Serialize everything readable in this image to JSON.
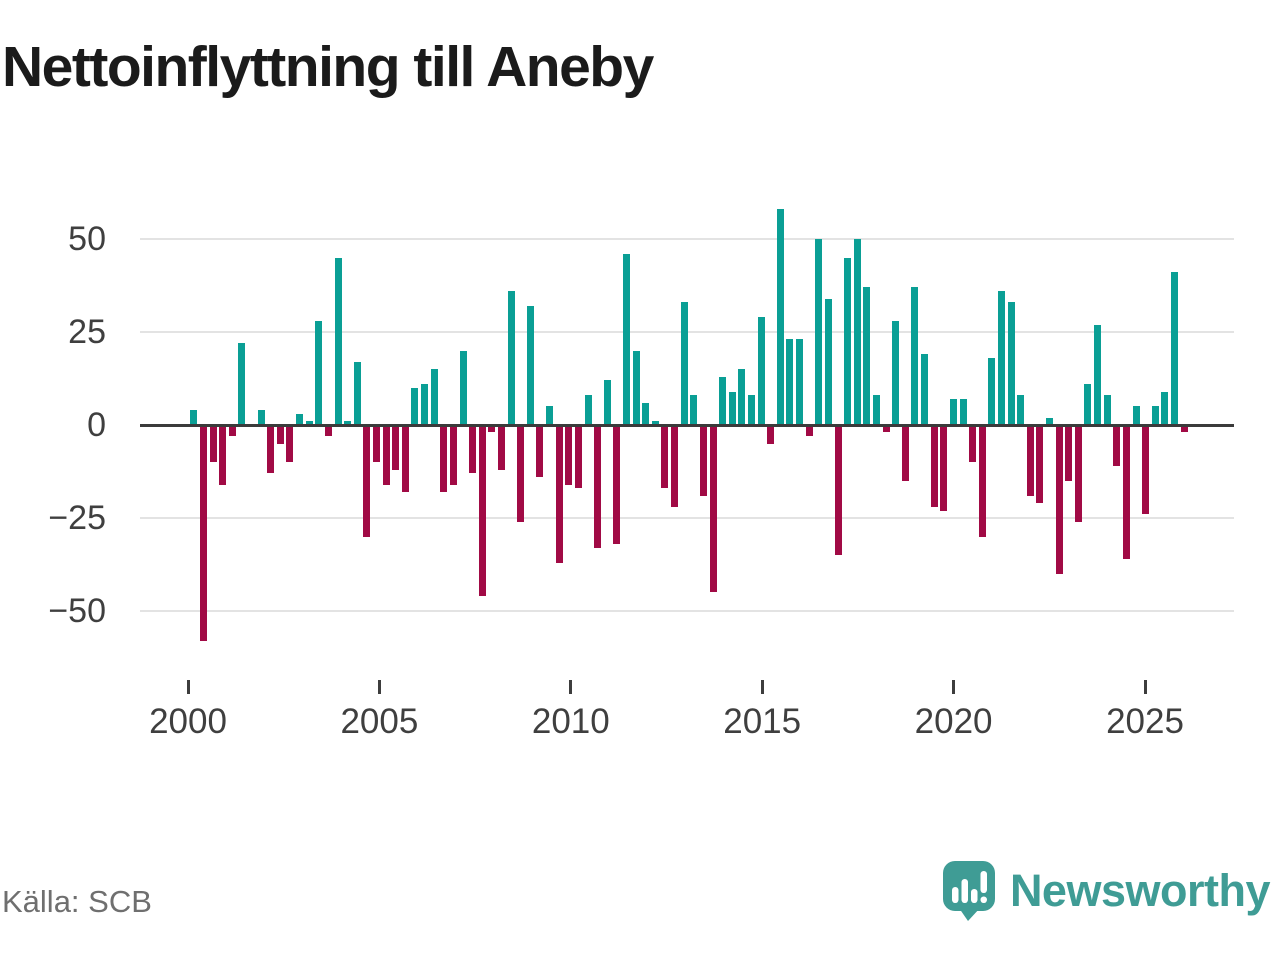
{
  "title": "Nettoinflyttning till Aneby",
  "source": "Källa: SCB",
  "brand": {
    "name": "Newsworthy",
    "icon": "speech-bubble-bar-chart-icon",
    "color": "#3f9c95"
  },
  "colors": {
    "positive_bar": "#0a9f95",
    "negative_bar": "#a10a45",
    "zero_axis": "#3b3b3b",
    "gridline": "#e3e3e3",
    "tick_label": "#3f3f3f",
    "title_text": "#1b1b1b",
    "source_text": "#6f6f6f",
    "background": "#ffffff"
  },
  "chart_data": {
    "type": "bar",
    "title": "Nettoinflyttning till Aneby",
    "xlabel": "",
    "ylabel": "",
    "frequency": "quarterly",
    "grid": true,
    "ylim": [
      -62,
      62
    ],
    "y_ticks": [
      {
        "label": "50",
        "value": 50
      },
      {
        "label": "25",
        "value": 25
      },
      {
        "label": "0",
        "value": 0
      },
      {
        "label": "−25",
        "value": -25
      },
      {
        "label": "−50",
        "value": -50
      }
    ],
    "x_tick_labels": [
      {
        "label": "2000",
        "year": 2000
      },
      {
        "label": "2005",
        "year": 2005
      },
      {
        "label": "2010",
        "year": 2010
      },
      {
        "label": "2015",
        "year": 2015
      },
      {
        "label": "2020",
        "year": 2020
      },
      {
        "label": "2025",
        "year": 2025
      }
    ],
    "categories": [
      "2000Q1",
      "2000Q2",
      "2000Q3",
      "2000Q4",
      "2001Q1",
      "2001Q2",
      "2001Q3",
      "2001Q4",
      "2002Q1",
      "2002Q2",
      "2002Q3",
      "2002Q4",
      "2003Q1",
      "2003Q2",
      "2003Q3",
      "2003Q4",
      "2004Q1",
      "2004Q2",
      "2004Q3",
      "2004Q4",
      "2005Q1",
      "2005Q2",
      "2005Q3",
      "2005Q4",
      "2006Q1",
      "2006Q2",
      "2006Q3",
      "2006Q4",
      "2007Q1",
      "2007Q2",
      "2007Q3",
      "2007Q4",
      "2008Q1",
      "2008Q2",
      "2008Q3",
      "2008Q4",
      "2009Q1",
      "2009Q2",
      "2009Q3",
      "2009Q4",
      "2010Q1",
      "2010Q2",
      "2010Q3",
      "2010Q4",
      "2011Q1",
      "2011Q2",
      "2011Q3",
      "2011Q4",
      "2012Q1",
      "2012Q2",
      "2012Q3",
      "2012Q4",
      "2013Q1",
      "2013Q2",
      "2013Q3",
      "2013Q4",
      "2014Q1",
      "2014Q2",
      "2014Q3",
      "2014Q4",
      "2015Q1",
      "2015Q2",
      "2015Q3",
      "2015Q4",
      "2016Q1",
      "2016Q2",
      "2016Q3",
      "2016Q4",
      "2017Q1",
      "2017Q2",
      "2017Q3",
      "2017Q4",
      "2018Q1",
      "2018Q2",
      "2018Q3",
      "2018Q4",
      "2019Q1",
      "2019Q2",
      "2019Q3",
      "2019Q4",
      "2020Q1",
      "2020Q2",
      "2020Q3",
      "2020Q4",
      "2021Q1",
      "2021Q2",
      "2021Q3",
      "2021Q4",
      "2022Q1",
      "2022Q2",
      "2022Q3",
      "2022Q4",
      "2023Q1",
      "2023Q2",
      "2023Q3",
      "2023Q4",
      "2024Q1",
      "2024Q2",
      "2024Q3",
      "2024Q4",
      "2025Q1",
      "2025Q2",
      "2025Q3",
      "2025Q4"
    ],
    "values": [
      4,
      -58,
      -10,
      -16,
      -3,
      22,
      0,
      4,
      -13,
      -5,
      -10,
      3,
      1,
      28,
      -3,
      45,
      1,
      17,
      -30,
      -10,
      -16,
      -12,
      -18,
      10,
      11,
      15,
      -18,
      -16,
      20,
      -13,
      -46,
      -2,
      -12,
      36,
      -26,
      32,
      -14,
      5,
      -37,
      -16,
      -17,
      8,
      -33,
      12,
      -32,
      46,
      20,
      6,
      1,
      -17,
      -22,
      33,
      8,
      -19,
      -45,
      13,
      9,
      15,
      8,
      29,
      -5,
      58,
      23,
      23,
      -3,
      50,
      34,
      -35,
      45,
      50,
      37,
      8,
      -2,
      28,
      -15,
      37,
      19,
      -22,
      -23,
      7,
      7,
      -10,
      -30,
      18,
      36,
      33,
      8,
      -19,
      -21,
      2,
      -40,
      -15,
      -26,
      11,
      27,
      8,
      -11,
      -36,
      5,
      -24,
      5,
      9,
      41,
      -2
    ]
  }
}
